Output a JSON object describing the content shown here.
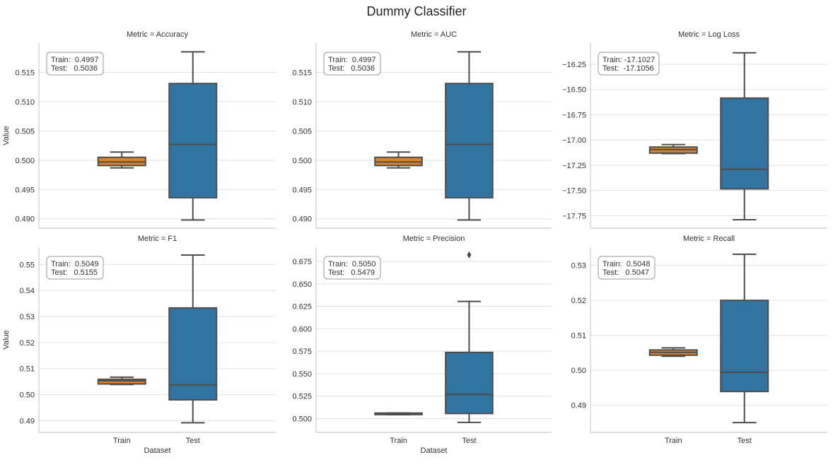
{
  "chart_data": {
    "type": "box",
    "title": "Dummy Classifier",
    "ylabel": "Value",
    "xlabel": "Dataset",
    "categories": [
      "Train",
      "Test"
    ],
    "colors": {
      "Train": "#e1812c",
      "Test": "#3274a1",
      "line": "#4d4d4d",
      "grid": "#e2e2e2",
      "spine": "#cccccc"
    },
    "panels": [
      {
        "title": "Metric = Accuracy",
        "ylim": [
          0.4884,
          0.52
        ],
        "ticks": [
          0.49,
          0.495,
          0.5,
          0.505,
          0.51,
          0.515
        ],
        "tick_labels": [
          "0.490",
          "0.495",
          "0.500",
          "0.505",
          "0.510",
          "0.515"
        ],
        "annotation": [
          "Train:  0.4997",
          "Test:   0.5036"
        ],
        "boxes": [
          {
            "name": "Train",
            "whislo": 0.4987,
            "q1": 0.4991,
            "med": 0.4997,
            "q3": 0.5005,
            "whishi": 0.5014,
            "fliers": []
          },
          {
            "name": "Test",
            "whislo": 0.4898,
            "q1": 0.4936,
            "med": 0.5027,
            "q3": 0.5131,
            "whishi": 0.5185,
            "fliers": []
          }
        ]
      },
      {
        "title": "Metric = AUC",
        "ylim": [
          0.4884,
          0.52
        ],
        "ticks": [
          0.49,
          0.495,
          0.5,
          0.505,
          0.51,
          0.515
        ],
        "tick_labels": [
          "0.490",
          "0.495",
          "0.500",
          "0.505",
          "0.510",
          "0.515"
        ],
        "annotation": [
          "Train:  0.4997",
          "Test:   0.5036"
        ],
        "boxes": [
          {
            "name": "Train",
            "whislo": 0.4987,
            "q1": 0.4991,
            "med": 0.4997,
            "q3": 0.5005,
            "whishi": 0.5014,
            "fliers": []
          },
          {
            "name": "Test",
            "whislo": 0.4898,
            "q1": 0.4936,
            "med": 0.5027,
            "q3": 0.5131,
            "whishi": 0.5185,
            "fliers": []
          }
        ]
      },
      {
        "title": "Metric = Log Loss",
        "ylim": [
          -17.874,
          -16.04
        ],
        "ticks": [
          -17.75,
          -17.5,
          -17.25,
          -17.0,
          -16.75,
          -16.5,
          -16.25
        ],
        "tick_labels": [
          "−17.75",
          "−17.50",
          "−17.25",
          "−17.00",
          "−16.75",
          "−16.50",
          "−16.25"
        ],
        "annotation": [
          "Train: -17.1027",
          "Test:  -17.1056"
        ],
        "boxes": [
          {
            "name": "Train",
            "whislo": -17.135,
            "q1": -17.13,
            "med": -17.095,
            "q3": -17.07,
            "whishi": -17.045,
            "fliers": []
          },
          {
            "name": "Test",
            "whislo": -17.79,
            "q1": -17.485,
            "med": -17.29,
            "q3": -16.585,
            "whishi": -16.136,
            "fliers": []
          }
        ]
      },
      {
        "title": "Metric = F1",
        "ylim": [
          0.4855,
          0.5566
        ],
        "ticks": [
          0.49,
          0.5,
          0.51,
          0.52,
          0.53,
          0.54,
          0.55
        ],
        "tick_labels": [
          "0.49",
          "0.50",
          "0.51",
          "0.52",
          "0.53",
          "0.54",
          "0.55"
        ],
        "annotation": [
          "Train:  0.5049",
          "Test:   0.5155"
        ],
        "boxes": [
          {
            "name": "Train",
            "whislo": 0.5039,
            "q1": 0.5041,
            "med": 0.5053,
            "q3": 0.5059,
            "whishi": 0.5067,
            "fliers": []
          },
          {
            "name": "Test",
            "whislo": 0.4892,
            "q1": 0.498,
            "med": 0.5037,
            "q3": 0.5333,
            "whishi": 0.5536,
            "fliers": []
          }
        ]
      },
      {
        "title": "Metric = Precision",
        "ylim": [
          0.4847,
          0.6907
        ],
        "ticks": [
          0.5,
          0.525,
          0.55,
          0.575,
          0.6,
          0.625,
          0.65,
          0.675
        ],
        "tick_labels": [
          "0.500",
          "0.525",
          "0.550",
          "0.575",
          "0.600",
          "0.625",
          "0.650",
          "0.675"
        ],
        "annotation": [
          "Train:  0.5050",
          "Test:   0.5479"
        ],
        "boxes": [
          {
            "name": "Train",
            "whislo": 0.5044,
            "q1": 0.5045,
            "med": 0.5055,
            "q3": 0.5062,
            "whishi": 0.5063,
            "fliers": []
          },
          {
            "name": "Test",
            "whislo": 0.4958,
            "q1": 0.5057,
            "med": 0.5269,
            "q3": 0.5737,
            "whishi": 0.6305,
            "fliers": [
              0.6822
            ]
          }
        ]
      },
      {
        "title": "Metric = Recall",
        "ylim": [
          0.4822,
          0.5352
        ],
        "ticks": [
          0.49,
          0.5,
          0.51,
          0.52,
          0.53
        ],
        "tick_labels": [
          "0.49",
          "0.50",
          "0.51",
          "0.52",
          "0.53"
        ],
        "annotation": [
          "Train:  0.5048",
          "Test:   0.5047"
        ],
        "boxes": [
          {
            "name": "Train",
            "whislo": 0.504,
            "q1": 0.5043,
            "med": 0.5051,
            "q3": 0.5058,
            "whishi": 0.5064,
            "fliers": []
          },
          {
            "name": "Test",
            "whislo": 0.485,
            "q1": 0.4939,
            "med": 0.4994,
            "q3": 0.52,
            "whishi": 0.5332,
            "fliers": []
          }
        ]
      }
    ]
  }
}
